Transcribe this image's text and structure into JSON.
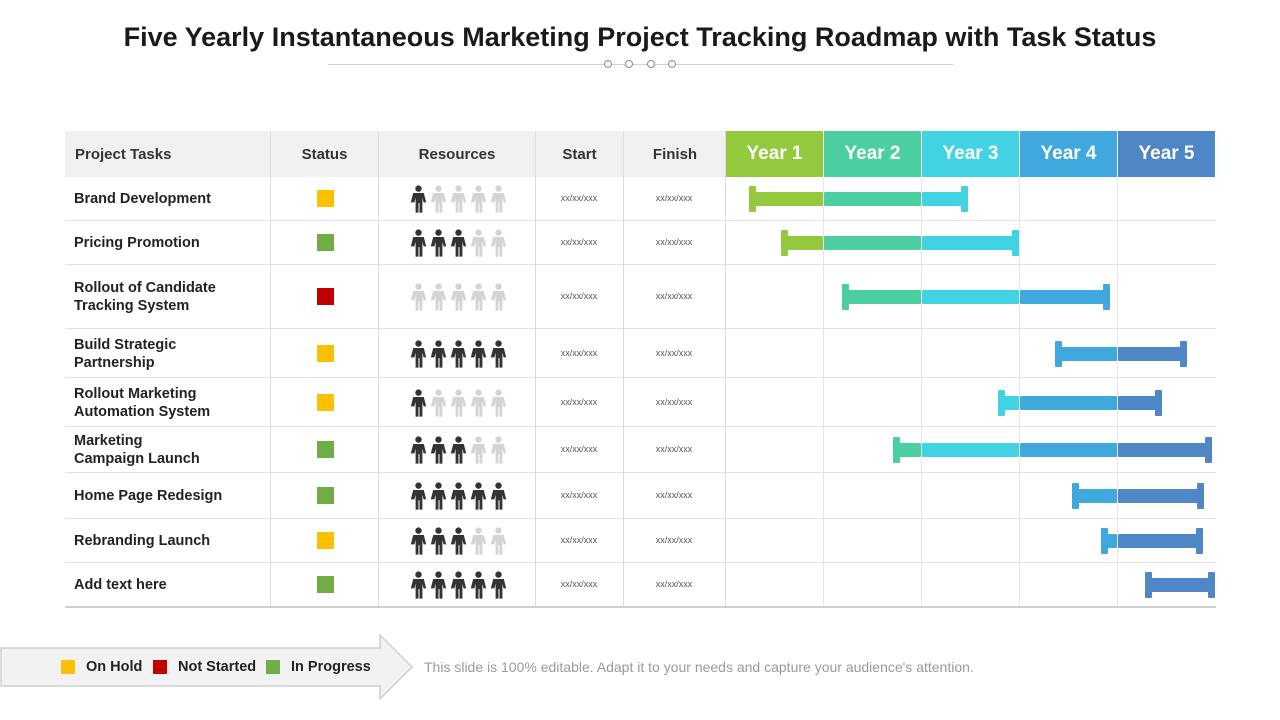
{
  "title": "Five Yearly Instantaneous Marketing Project Tracking Roadmap with Task Status",
  "columns": {
    "tasks": "Project Tasks",
    "status": "Status",
    "resources": "Resources",
    "start": "Start",
    "finish": "Finish"
  },
  "years": [
    {
      "label": "Year 1",
      "color": "#95c93d"
    },
    {
      "label": "Year 2",
      "color": "#4ccfa0"
    },
    {
      "label": "Year 3",
      "color": "#41d3e4"
    },
    {
      "label": "Year 4",
      "color": "#3fa8dc"
    },
    {
      "label": "Year 5",
      "color": "#4f86c6"
    }
  ],
  "status_colors": {
    "on_hold": "#fdc000",
    "not_started": "#c00000",
    "in_progress": "#70ad47"
  },
  "resource_colors": {
    "filled": "#333333",
    "empty": "#d4d4d4"
  },
  "tasks": [
    {
      "name": "Brand Development",
      "status": "on_hold",
      "resources_filled": 1,
      "start": "xx/xx/xxx",
      "finish": "xx/xx/xxx",
      "bar_start": 0.25,
      "bar_end": 2.45
    },
    {
      "name": "Pricing Promotion",
      "status": "in_progress",
      "resources_filled": 3,
      "start": "xx/xx/xxx",
      "finish": "xx/xx/xxx",
      "bar_start": 0.58,
      "bar_end": 2.97
    },
    {
      "name": "Rollout of Candidate\nTracking System",
      "status": "not_started",
      "resources_filled": 0,
      "start": "xx/xx/xxx",
      "finish": "xx/xx/xxx",
      "bar_start": 1.2,
      "bar_end": 3.9
    },
    {
      "name": "Build Strategic\nPartnership",
      "status": "on_hold",
      "resources_filled": 5,
      "start": "xx/xx/xxx",
      "finish": "xx/xx/xxx",
      "bar_start": 3.38,
      "bar_end": 4.68
    },
    {
      "name": "Rollout Marketing\nAutomation  System",
      "status": "on_hold",
      "resources_filled": 1,
      "start": "xx/xx/xxx",
      "finish": "xx/xx/xxx",
      "bar_start": 2.8,
      "bar_end": 4.43
    },
    {
      "name": "Marketing\nCampaign Launch",
      "status": "in_progress",
      "resources_filled": 3,
      "start": "xx/xx/xxx",
      "finish": "xx/xx/xxx",
      "bar_start": 1.72,
      "bar_end": 4.94
    },
    {
      "name": "Home Page Redesign",
      "status": "in_progress",
      "resources_filled": 5,
      "start": "xx/xx/xxx",
      "finish": "xx/xx/xxx",
      "bar_start": 3.55,
      "bar_end": 4.86
    },
    {
      "name": "Rebranding Launch",
      "status": "on_hold",
      "resources_filled": 3,
      "start": "xx/xx/xxx",
      "finish": "xx/xx/xxx",
      "bar_start": 3.85,
      "bar_end": 4.85
    },
    {
      "name": "Add  text here",
      "status": "in_progress",
      "resources_filled": 5,
      "start": "xx/xx/xxx",
      "finish": "xx/xx/xxx",
      "bar_start": 4.3,
      "bar_end": 4.97
    }
  ],
  "legend": {
    "on_hold": "On Hold",
    "not_started": "Not Started",
    "in_progress": "In Progress"
  },
  "note": "This slide is 100% editable. Adapt it to your needs and capture your audience's attention."
}
